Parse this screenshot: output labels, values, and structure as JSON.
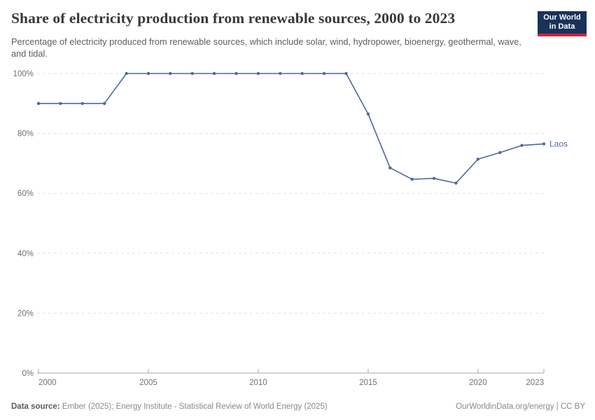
{
  "header": {
    "title": "Share of electricity production from renewable sources, 2000 to 2023",
    "subtitle": "Percentage of electricity produced from renewable sources, which include solar, wind, hydropower, bioenergy, geothermal, wave, and tidal.",
    "logo": {
      "line1": "Our World",
      "line2": "in Data"
    }
  },
  "chart_data": {
    "type": "line",
    "title": "Share of electricity production from renewable sources, 2000 to 2023",
    "xlabel": "",
    "ylabel": "",
    "x": [
      2000,
      2001,
      2002,
      2003,
      2004,
      2005,
      2006,
      2007,
      2008,
      2009,
      2010,
      2011,
      2012,
      2013,
      2014,
      2015,
      2016,
      2017,
      2018,
      2019,
      2020,
      2021,
      2022,
      2023
    ],
    "series": [
      {
        "name": "Laos",
        "color": "#4c6a9c",
        "values": [
          90,
          90,
          90,
          90,
          100,
          100,
          100,
          100,
          100,
          100,
          100,
          100,
          100,
          100,
          100,
          86.5,
          68.5,
          64.7,
          65,
          63.4,
          71.4,
          73.6,
          76,
          76.5
        ]
      }
    ],
    "xlim": [
      2000,
      2023
    ],
    "ylim": [
      0,
      100
    ],
    "x_tick_values": [
      2000,
      2005,
      2010,
      2015,
      2020,
      2023
    ],
    "x_tick_labels": [
      "2000",
      "2005",
      "2010",
      "2015",
      "2020",
      "2023"
    ],
    "y_tick_values": [
      0,
      20,
      40,
      60,
      80,
      100
    ],
    "y_tick_suffix": "%",
    "grid": "horizontal-dashed",
    "legend_position": "end-of-line-label"
  },
  "footer": {
    "source_label": "Data source:",
    "source_text": "Ember (2025); Energy Institute - Statistical Review of World Energy (2025)",
    "credit": "OurWorldinData.org/energy | CC BY"
  },
  "colors": {
    "accent_line": "#4c6a9c",
    "grid": "#e0e0e0",
    "axis": "#a9a9a9",
    "logo_bg": "#17335a",
    "logo_bar": "#cc2439"
  }
}
